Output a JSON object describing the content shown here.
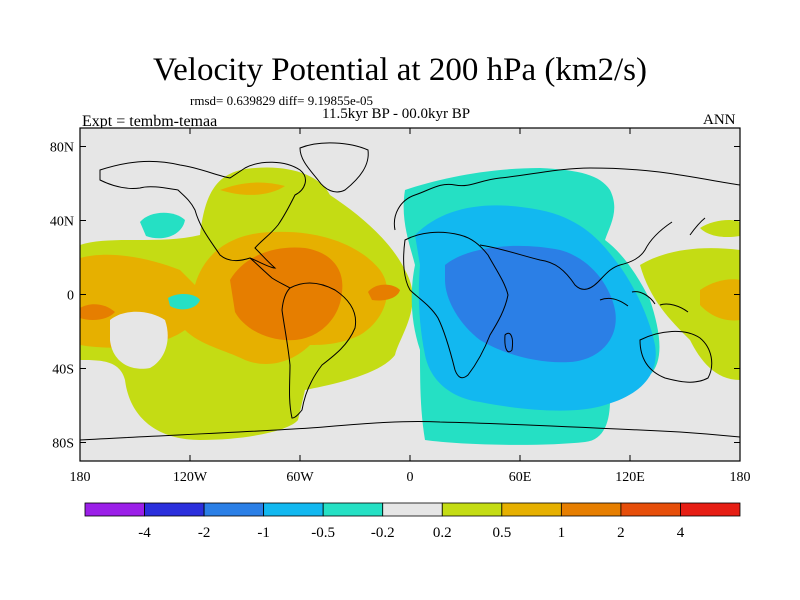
{
  "title": "Velocity Potential at 200 hPa (km2/s)",
  "stats": "rmsd= 0.639829 diff= 9.19855e-05",
  "period": "11.5kyr BP - 00.0kyr BP",
  "expt": "Expt = tembm-temaa",
  "season": "ANN",
  "map": {
    "projection": "cylindrical equidistant",
    "lon_range": [
      -180,
      180
    ],
    "lat_range": [
      -90,
      90
    ],
    "lon_ticks": [
      {
        "value": -180,
        "label": "180"
      },
      {
        "value": -120,
        "label": "120W"
      },
      {
        "value": -60,
        "label": "60W"
      },
      {
        "value": 0,
        "label": "0"
      },
      {
        "value": 60,
        "label": "60E"
      },
      {
        "value": 120,
        "label": "120E"
      },
      {
        "value": 180,
        "label": "180"
      }
    ],
    "lat_ticks": [
      {
        "value": 80,
        "label": "80N"
      },
      {
        "value": 40,
        "label": "40N"
      },
      {
        "value": 0,
        "label": "0"
      },
      {
        "value": -40,
        "label": "40S"
      },
      {
        "value": -80,
        "label": "80S"
      }
    ]
  },
  "colorbar": {
    "colors": [
      "#9b1fe8",
      "#2b2fdc",
      "#2b7fe6",
      "#12b8f0",
      "#25e0c4",
      "#e6e6e6",
      "#c4dc14",
      "#e6b000",
      "#e67e00",
      "#e64e0a",
      "#e61e14"
    ],
    "labels": [
      "-4",
      "-2",
      "-1",
      "-0.5",
      "-0.2",
      "0.2",
      "0.5",
      "1",
      "2",
      "4"
    ]
  }
}
